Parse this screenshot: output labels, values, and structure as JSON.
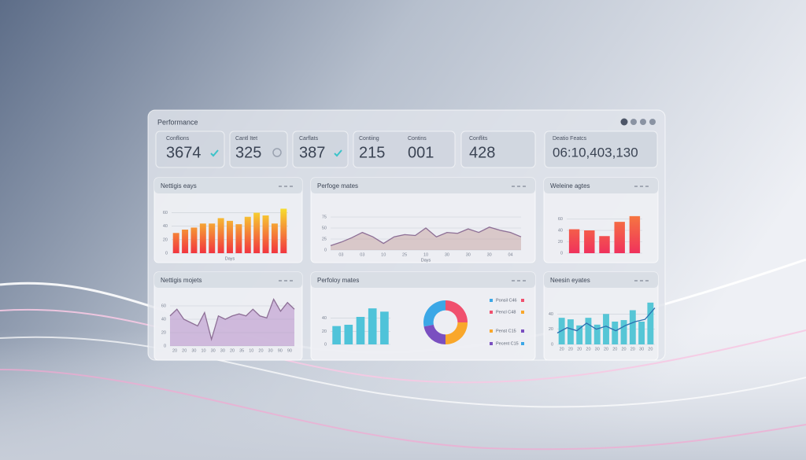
{
  "header": {
    "title": "Performance"
  },
  "kpis": [
    {
      "label": "Conflions",
      "value": "3674"
    },
    {
      "label": "Cantl Itet",
      "value": "325"
    },
    {
      "label": "Carflats",
      "value": "387"
    },
    {
      "label": "Contiing",
      "value": "215"
    },
    {
      "label": "Contins",
      "value": "001"
    },
    {
      "label": "Conflits",
      "value": "428"
    },
    {
      "label": "Deatio Featcs",
      "value": "06:10,403,130"
    }
  ],
  "panels": [
    {
      "title": "Nettigis eays",
      "charts": [
        {
          "type": "bar",
          "values": [
            30,
            35,
            38,
            44,
            44,
            52,
            48,
            43,
            54,
            60,
            56,
            44,
            66
          ],
          "ylim": [
            0,
            70
          ],
          "yticks": [
            0,
            20,
            40,
            60
          ],
          "gradient": [
            "#f7e72e",
            "#f2353f"
          ],
          "x_label": "Days"
        }
      ]
    },
    {
      "title": "Perfoge mates",
      "charts": [
        {
          "type": "area",
          "values": [
            10,
            18,
            28,
            40,
            30,
            15,
            30,
            35,
            33,
            50,
            30,
            40,
            38,
            48,
            40,
            52,
            45,
            40,
            30
          ],
          "ylim": [
            0,
            100
          ],
          "yticks": [
            0,
            25,
            50,
            75
          ],
          "color": "#c9a9a6",
          "xticks": [
            "03",
            "03",
            "10",
            "25",
            "10",
            "30",
            "30",
            "30",
            "04"
          ],
          "x_label": "Days"
        }
      ]
    },
    {
      "title": "Weleine agtes",
      "charts": [
        {
          "type": "bar",
          "values": [
            42,
            40,
            30,
            55,
            65
          ],
          "ylim": [
            0,
            80
          ],
          "yticks": [
            0,
            20,
            40,
            60
          ],
          "gradient": [
            "#f7853a",
            "#f0325c"
          ]
        }
      ]
    },
    {
      "title": "Nettigis mojets",
      "charts": [
        {
          "type": "area",
          "values": [
            45,
            55,
            40,
            35,
            30,
            50,
            10,
            45,
            40,
            45,
            48,
            45,
            55,
            45,
            42,
            70,
            52,
            65,
            55
          ],
          "ylim": [
            0,
            80
          ],
          "yticks": [
            0,
            20,
            40,
            60
          ],
          "color": "#b78ec9",
          "xticks": [
            "20",
            "20",
            "30",
            "10",
            "30",
            "30",
            "20",
            "35",
            "10",
            "20",
            "30",
            "90",
            "90"
          ]
        }
      ]
    },
    {
      "title": "Perfoloy mates",
      "charts": [
        {
          "type": "bar",
          "values": [
            28,
            30,
            42,
            55,
            50
          ],
          "ylim": [
            0,
            60
          ],
          "yticks": [
            0,
            20,
            40
          ],
          "color": "#4fc3d9"
        },
        {
          "type": "donut",
          "values": [
            25,
            25,
            22,
            28
          ],
          "colors": [
            "#f0506e",
            "#f9a72b",
            "#7a4fc0",
            "#3ba7e6"
          ],
          "labels": [
            "Ponsil C46",
            "Pencl C48",
            "Penst C15",
            "Pecent C15"
          ]
        }
      ]
    },
    {
      "title": "Neesin eyates",
      "charts": [
        {
          "type": "bar",
          "values": [
            35,
            33,
            25,
            35,
            26,
            40,
            30,
            32,
            45,
            30,
            55
          ],
          "ylim": [
            0,
            60
          ],
          "yticks": [
            0,
            20,
            40
          ],
          "color": "#56c6d6",
          "xticks": [
            "20",
            "20",
            "20",
            "20",
            "30",
            "20",
            "20",
            "20",
            "20",
            "30",
            "20"
          ]
        },
        {
          "type": "line",
          "values": [
            15,
            22,
            18,
            28,
            20,
            24,
            18,
            25,
            30,
            33,
            48
          ],
          "ylim": [
            0,
            60
          ],
          "color": "#2b6fb0"
        }
      ]
    }
  ]
}
